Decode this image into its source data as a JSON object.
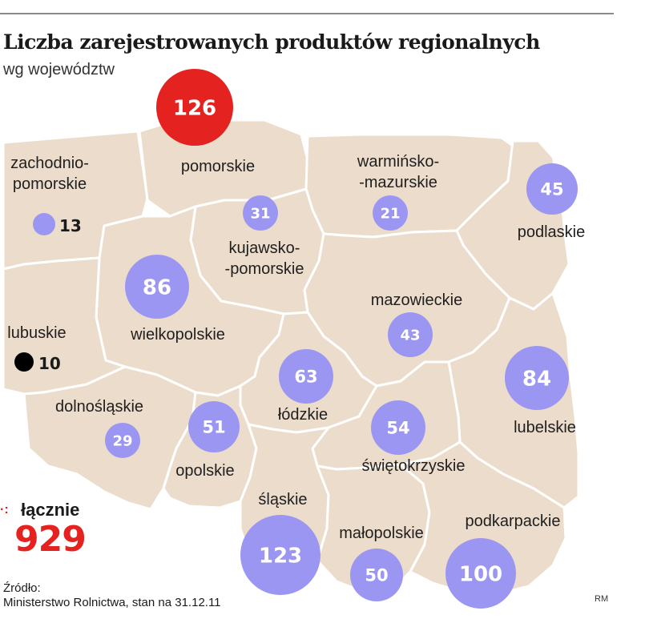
{
  "title": "Liczba zarejestrowanych produktów regionalnych",
  "subtitle": "wg województw",
  "colors": {
    "region_fill": "#ecdccb",
    "region_border": "#ffffff",
    "bubble_default": "#9c96f3",
    "bubble_max": "#e42320",
    "bubble_min": "#000000",
    "total": "#e42320"
  },
  "regions": [
    {
      "name": "zachodnio-\npomorskie",
      "value": 13,
      "bubble": "default",
      "value_outside": true
    },
    {
      "name": "pomorskie",
      "value": 126,
      "bubble": "max",
      "value_outside": false
    },
    {
      "name": "warmińsko-\n-mazurskie",
      "value": 21,
      "bubble": "default",
      "value_outside": false
    },
    {
      "name": "podlaskie",
      "value": 45,
      "bubble": "default",
      "value_outside": false
    },
    {
      "name": "kujawsko-\n-pomorskie",
      "value": 31,
      "bubble": "default",
      "value_outside": false
    },
    {
      "name": "wielkopolskie",
      "value": 86,
      "bubble": "default",
      "value_outside": false
    },
    {
      "name": "lubuskie",
      "value": 10,
      "bubble": "min",
      "value_outside": true
    },
    {
      "name": "mazowieckie",
      "value": 43,
      "bubble": "default",
      "value_outside": false
    },
    {
      "name": "łódzkie",
      "value": 63,
      "bubble": "default",
      "value_outside": false
    },
    {
      "name": "lubelskie",
      "value": 84,
      "bubble": "default",
      "value_outside": false
    },
    {
      "name": "dolnośląskie",
      "value": 29,
      "bubble": "default",
      "value_outside": false
    },
    {
      "name": "opolskie",
      "value": 51,
      "bubble": "default",
      "value_outside": false
    },
    {
      "name": "świętokrzyskie",
      "value": 54,
      "bubble": "default",
      "value_outside": false
    },
    {
      "name": "śląskie",
      "value": 123,
      "bubble": "default",
      "value_outside": false
    },
    {
      "name": "małopolskie",
      "value": 50,
      "bubble": "default",
      "value_outside": false
    },
    {
      "name": "podkarpackie",
      "value": 100,
      "bubble": "default",
      "value_outside": false
    }
  ],
  "total": {
    "label": "łącznie",
    "value": "929"
  },
  "source": {
    "line1": "Źródło:",
    "line2": "Ministerstwo Rolnictwa, stan na 31.12.11"
  },
  "credit": "RM"
}
